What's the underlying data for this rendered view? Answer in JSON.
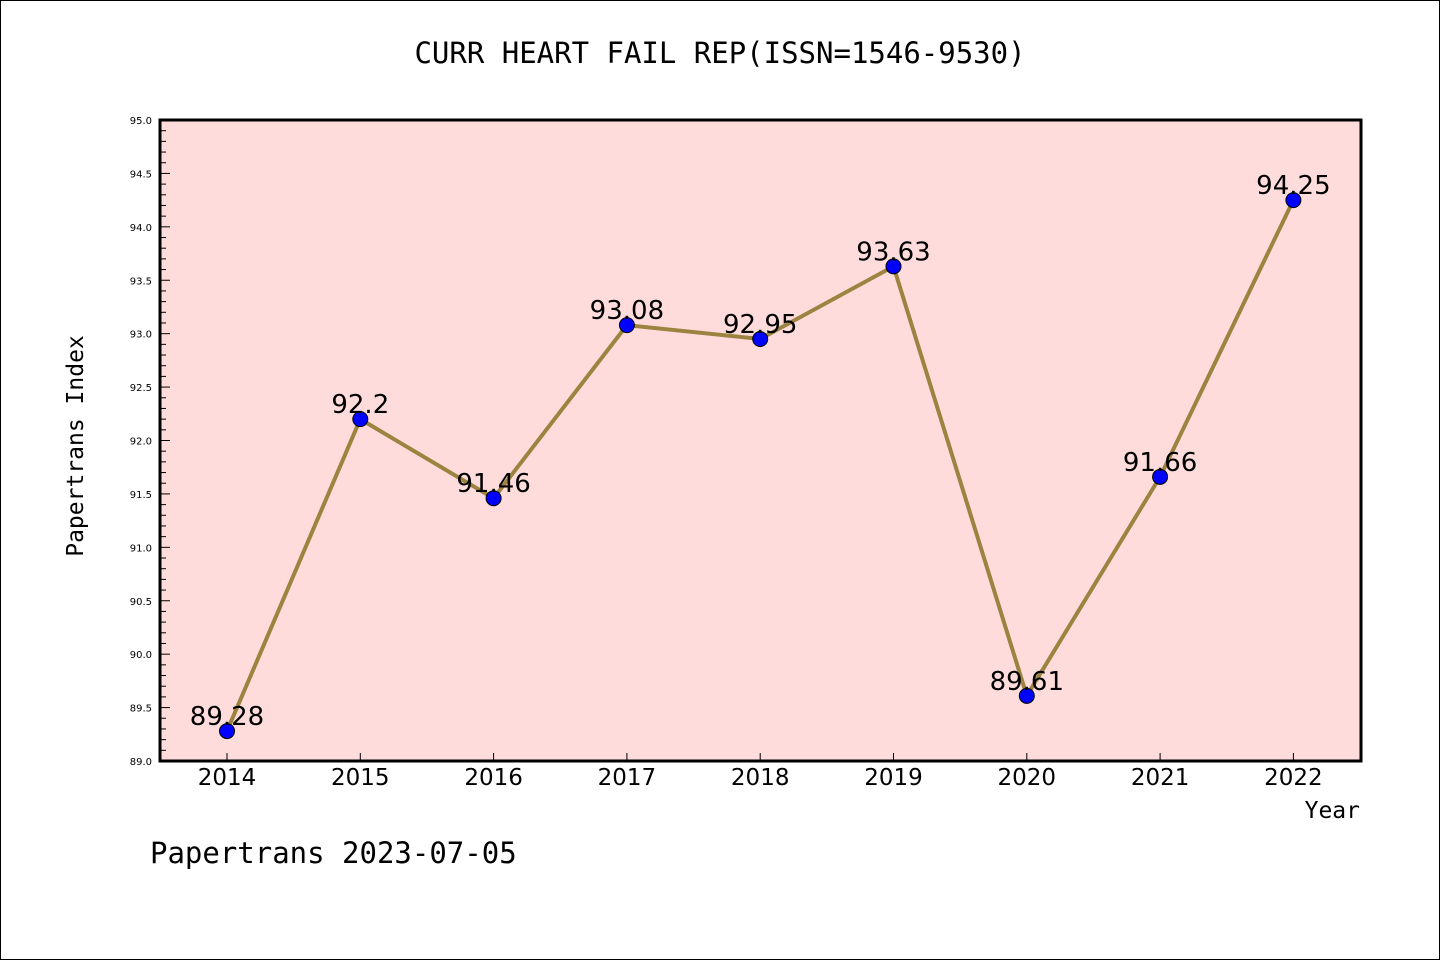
{
  "chart_data": {
    "type": "line",
    "title": "CURR HEART FAIL REP(ISSN=1546-9530)",
    "xlabel": "Year",
    "ylabel": "Papertrans Index",
    "categories": [
      "2014",
      "2015",
      "2016",
      "2017",
      "2018",
      "2019",
      "2020",
      "2021",
      "2022"
    ],
    "series": [
      {
        "values": [
          89.28,
          92.2,
          91.46,
          93.08,
          92.95,
          93.63,
          89.61,
          91.66,
          94.25
        ],
        "data_labels": [
          "89.28",
          "92.2",
          "91.46",
          "93.08",
          "92.95",
          "93.63",
          "89.61",
          "91.66",
          "94.25"
        ],
        "line_color": "#9c8440",
        "marker_color": "#0000ff"
      }
    ],
    "ylim": [
      89.0,
      95.0
    ],
    "yticks": [
      "89.0",
      "89.5",
      "90.0",
      "90.5",
      "91.0",
      "91.5",
      "92.0",
      "92.5",
      "93.0",
      "93.5",
      "94.0",
      "94.5",
      "95.0"
    ],
    "plot_background": "#ffdcdc",
    "grid": false,
    "legend": "none"
  },
  "footer": "Papertrans 2023-07-05"
}
